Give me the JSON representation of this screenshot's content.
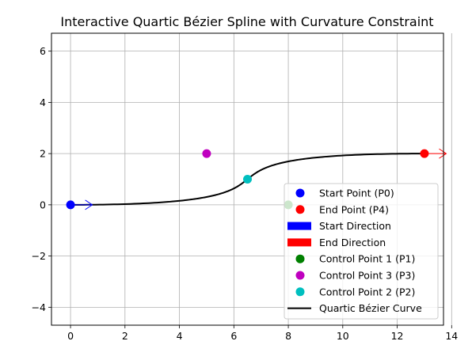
{
  "chart_data": {
    "type": "line",
    "title": "Interactive Quartic Bézier Spline with Curvature Constraint",
    "xlabel": "",
    "ylabel": "",
    "xlim": [
      -0.7,
      13.7
    ],
    "ylim": [
      -4.7,
      6.7
    ],
    "xticks": [
      0,
      2,
      4,
      6,
      8,
      10,
      12,
      14
    ],
    "yticks": [
      -4,
      -2,
      0,
      2,
      4,
      6
    ],
    "xtick_labels": [
      "0",
      "2",
      "4",
      "6",
      "8",
      "10",
      "12",
      "14"
    ],
    "ytick_labels": [
      "−4",
      "−2",
      "0",
      "2",
      "4",
      "6"
    ],
    "grid": true,
    "legend_placement": "lower-right",
    "points": [
      {
        "name": "Start Point (P0)",
        "x": 0,
        "y": 0,
        "color": "#0000ff"
      },
      {
        "name": "End Point (P4)",
        "x": 13,
        "y": 2,
        "color": "#ff0000"
      },
      {
        "name": "Control Point 1 (P1)",
        "x": 8,
        "y": 0,
        "color": "#008000"
      },
      {
        "name": "Control Point 3 (P3)",
        "x": 5,
        "y": 2,
        "color": "#bf00bf"
      },
      {
        "name": "Control Point 2 (P2)",
        "x": 6.5,
        "y": 1,
        "color": "#00bfbf"
      }
    ],
    "directions": [
      {
        "name": "Start Direction",
        "x": 0,
        "y": 0,
        "dx": 0.8,
        "dy": 0,
        "color": "#0000ff"
      },
      {
        "name": "End Direction",
        "x": 13,
        "y": 2,
        "dx": 0.8,
        "dy": 0,
        "color": "#ff0000"
      }
    ],
    "curve": {
      "name": "Quartic Bézier Curve",
      "color": "#000000",
      "control_points": [
        [
          0,
          0
        ],
        [
          8,
          0
        ],
        [
          6.5,
          1
        ],
        [
          5,
          2
        ],
        [
          13,
          2
        ]
      ]
    },
    "legend": [
      {
        "label": "Start Point (P0)",
        "kind": "marker",
        "color": "#0000ff"
      },
      {
        "label": "End Point (P4)",
        "kind": "marker",
        "color": "#ff0000"
      },
      {
        "label": "Start Direction",
        "kind": "patch",
        "color": "#0000ff"
      },
      {
        "label": "End Direction",
        "kind": "patch",
        "color": "#ff0000"
      },
      {
        "label": "Control Point 1 (P1)",
        "kind": "marker",
        "color": "#008000"
      },
      {
        "label": "Control Point 3 (P3)",
        "kind": "marker",
        "color": "#bf00bf"
      },
      {
        "label": "Control Point 2 (P2)",
        "kind": "marker",
        "color": "#00bfbf"
      },
      {
        "label": "Quartic Bézier Curve",
        "kind": "line",
        "color": "#000000"
      }
    ]
  }
}
